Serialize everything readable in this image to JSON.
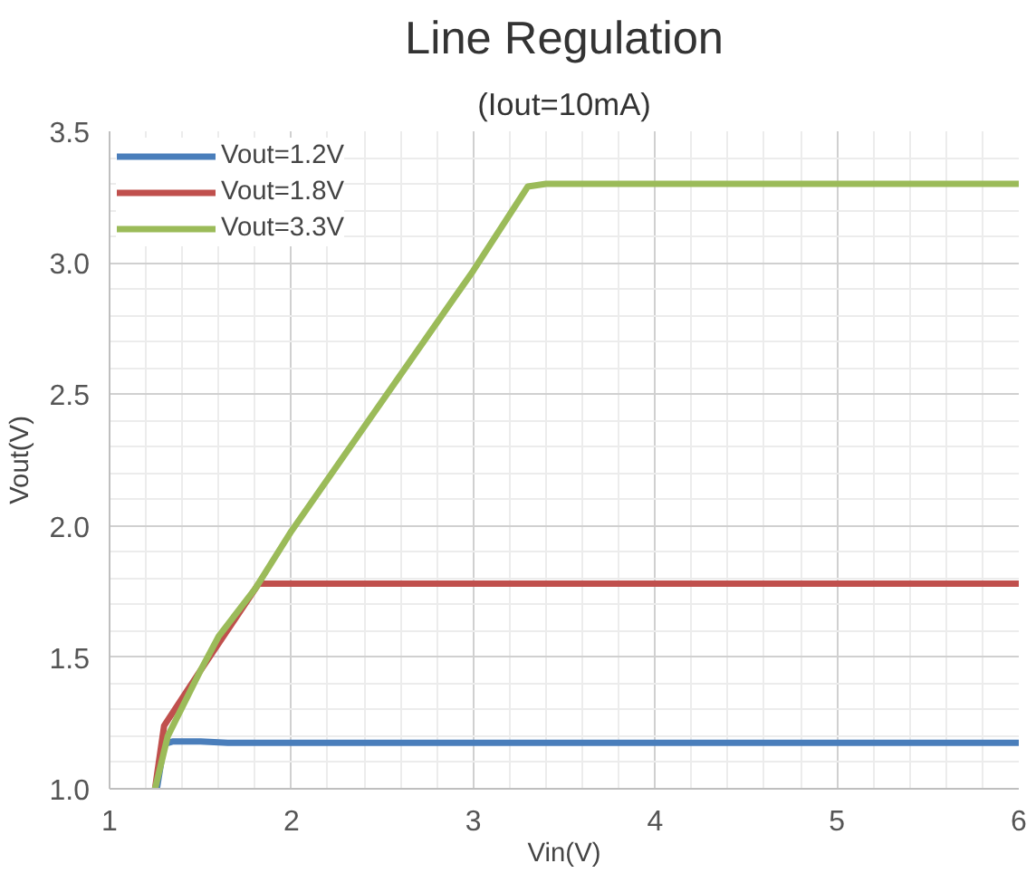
{
  "chart_data": {
    "type": "line",
    "title": "Line Regulation",
    "subtitle": "(Iout=10mA)",
    "xlabel": "Vin(V)",
    "ylabel": "Vout(V)",
    "xlim": [
      1,
      6
    ],
    "xticks": [
      1,
      2,
      3,
      4,
      5,
      6
    ],
    "ylim": [
      1,
      3.5
    ],
    "yticks": [
      {
        "value": 1,
        "label": "1.0"
      },
      {
        "value": 1.5,
        "label": "1.5"
      },
      {
        "value": 2,
        "label": "2.0"
      },
      {
        "value": 2.5,
        "label": "2.5"
      },
      {
        "value": 3,
        "label": "3.0"
      },
      {
        "value": 3.5,
        "label": "3.5"
      }
    ],
    "grid": true,
    "legend": "top left",
    "marker": "none",
    "line_style": "solid",
    "series": [
      {
        "name": "Vout=1.2V",
        "color": "#4a7ebb",
        "x": [
          1.26,
          1.3,
          1.35,
          1.5,
          1.65,
          6
        ],
        "values": [
          1.0,
          1.17,
          1.18,
          1.18,
          1.175,
          1.175
        ]
      },
      {
        "name": "Vout=1.8V",
        "color": "#c0504d",
        "x": [
          1.25,
          1.3,
          1.5,
          1.82,
          6
        ],
        "values": [
          1.0,
          1.24,
          1.45,
          1.78,
          1.78
        ]
      },
      {
        "name": "Vout=3.3V",
        "color": "#9bbb59",
        "x": [
          1.25,
          1.32,
          1.5,
          1.6,
          1.8,
          2,
          3,
          3.3,
          3.4,
          6
        ],
        "values": [
          1.0,
          1.2,
          1.45,
          1.58,
          1.76,
          1.98,
          2.97,
          3.29,
          3.3,
          3.3
        ]
      }
    ]
  }
}
